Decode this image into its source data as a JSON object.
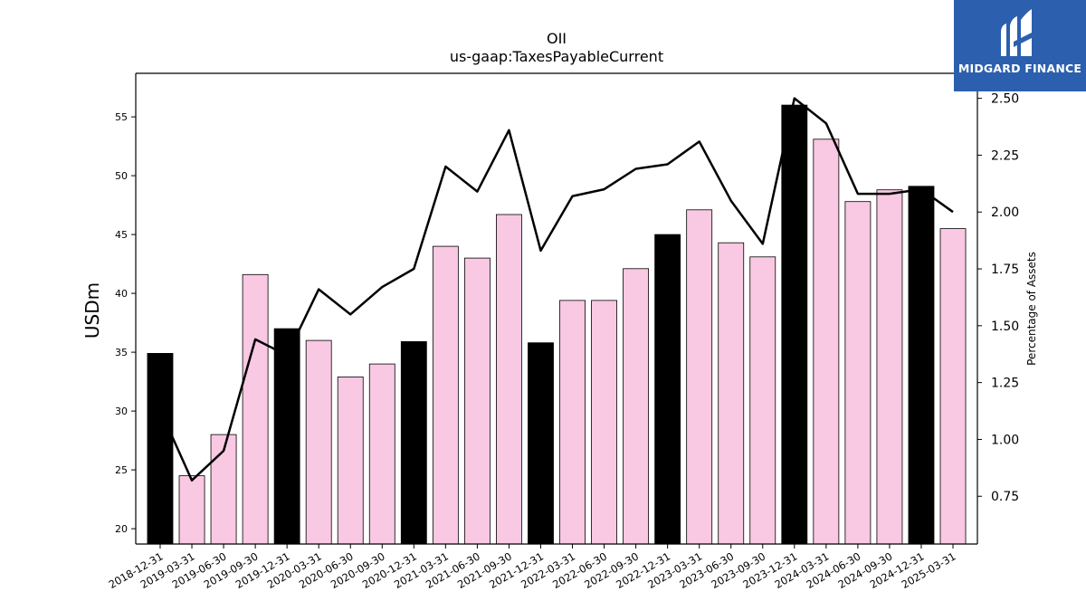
{
  "brand": {
    "name": "MIDGARD FINANCE",
    "logo_icon": "midgard-logo-icon",
    "bg_color": "#2c5fae"
  },
  "chart_data": {
    "type": "bar",
    "title": "OII",
    "subtitle": "us-gaap:TaxesPayableCurrent",
    "ylabel": "USDm",
    "y2label": "Percentage of Assets",
    "ylim": [
      18.7,
      58.7
    ],
    "y2lim": [
      0.54,
      2.61
    ],
    "yticks": [
      20,
      25,
      30,
      35,
      40,
      45,
      50,
      55
    ],
    "y2ticks": [
      "0.75",
      "1.00",
      "1.25",
      "1.50",
      "1.75",
      "2.00",
      "2.25",
      "2.50"
    ],
    "categories": [
      "2018-12-31",
      "2019-03-31",
      "2019-06-30",
      "2019-09-30",
      "2019-12-31",
      "2020-03-31",
      "2020-06-30",
      "2020-09-30",
      "2020-12-31",
      "2021-03-31",
      "2021-06-30",
      "2021-09-30",
      "2021-12-31",
      "2022-03-31",
      "2022-06-30",
      "2022-09-30",
      "2022-12-31",
      "2023-03-31",
      "2023-06-30",
      "2023-09-30",
      "2023-12-31",
      "2024-03-31",
      "2024-06-30",
      "2024-09-30",
      "2024-12-31",
      "2025-03-31"
    ],
    "series": [
      {
        "values": [
          34.9,
          24.5,
          28.0,
          41.6,
          37.0,
          36.0,
          32.9,
          34.0,
          35.9,
          44.0,
          43.0,
          46.7,
          35.8,
          39.4,
          39.4,
          42.1,
          45.0,
          47.1,
          44.3,
          43.1,
          56.0,
          53.1,
          47.8,
          48.8,
          49.1,
          45.5
        ]
      },
      {
        "axis": "right",
        "type": "line",
        "values": [
          1.13,
          0.82,
          0.95,
          1.44,
          1.37,
          1.66,
          1.55,
          1.67,
          1.75,
          2.2,
          2.09,
          2.36,
          1.83,
          2.07,
          2.1,
          2.19,
          2.21,
          2.31,
          2.05,
          1.86,
          2.5,
          2.39,
          2.08,
          2.08,
          2.1,
          2.0
        ]
      }
    ],
    "year_end_color": "#000000",
    "quarter_color": "#f9c8e2",
    "line_color": "#000000",
    "grid": false
  }
}
